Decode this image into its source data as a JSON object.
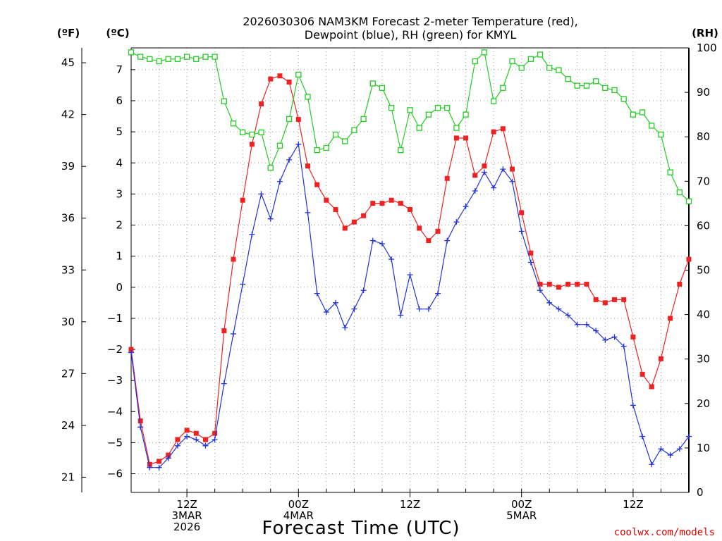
{
  "chart_data": {
    "type": "line",
    "title_line1": "2026030306 NAM3KM Forecast 2-meter Temperature (red),",
    "title_line2": "Dewpoint (blue), RH (green) for KMYL",
    "xlabel": "Forecast Time (UTC)",
    "credit": "coolwx.com/models",
    "units": {
      "left_f": "(ºF)",
      "left_c": "(ºC)",
      "right": "(RH)"
    },
    "celsius_axis": {
      "range": [
        -6.6,
        7.7
      ],
      "ticks": [
        7,
        6,
        5,
        4,
        3,
        2,
        1,
        0,
        -1,
        -2,
        -3,
        -4,
        -5,
        -6
      ],
      "labels": [
        "7",
        "6",
        "5",
        "4",
        "3",
        "2",
        "1",
        "0",
        "−1",
        "−2",
        "−3",
        "−4",
        "−5",
        "−6"
      ]
    },
    "fahrenheit_axis": {
      "ticks": [
        45,
        42,
        39,
        36,
        33,
        30,
        27,
        24,
        21
      ],
      "labels": [
        "45",
        "42",
        "39",
        "36",
        "33",
        "30",
        "27",
        "24",
        "21"
      ]
    },
    "rh_axis": {
      "range": [
        0,
        100
      ],
      "ticks": [
        100,
        90,
        80,
        70,
        60,
        50,
        40,
        30,
        20,
        10,
        0
      ],
      "labels": [
        "100",
        "90",
        "80",
        "70",
        "60",
        "50",
        "40",
        "30",
        "20",
        "10",
        "0"
      ]
    },
    "x_range_hours": [
      6,
      66
    ],
    "x_ticks": [
      {
        "hour": 12,
        "lines": [
          "12Z",
          "3MAR",
          "2026"
        ]
      },
      {
        "hour": 24,
        "lines": [
          "00Z",
          "4MAR"
        ]
      },
      {
        "hour": 36,
        "lines": [
          "12Z"
        ]
      },
      {
        "hour": 48,
        "lines": [
          "00Z",
          "5MAR"
        ]
      },
      {
        "hour": 60,
        "lines": [
          "12Z"
        ]
      }
    ],
    "series": [
      {
        "name": "Temperature",
        "color": "#ee2222",
        "marker": "filled-square",
        "axis": "celsius",
        "x": [
          6,
          7,
          8,
          9,
          10,
          11,
          12,
          13,
          14,
          15,
          16,
          17,
          18,
          19,
          20,
          21,
          22,
          23,
          24,
          25,
          26,
          27,
          28,
          29,
          30,
          31,
          32,
          33,
          34,
          35,
          36,
          37,
          38,
          39,
          40,
          41,
          42,
          43,
          44,
          45,
          46,
          47,
          48,
          49,
          50,
          51,
          52,
          53,
          54,
          55,
          56,
          57,
          58,
          59,
          60,
          61,
          62,
          63,
          64,
          65,
          66
        ],
        "values": [
          -2.0,
          -4.3,
          -5.7,
          -5.6,
          -5.4,
          -4.9,
          -4.6,
          -4.7,
          -4.9,
          -4.7,
          -1.4,
          0.9,
          2.8,
          4.6,
          5.9,
          6.7,
          6.8,
          6.6,
          5.4,
          3.9,
          3.3,
          2.8,
          2.5,
          1.9,
          2.1,
          2.3,
          2.7,
          2.7,
          2.8,
          2.7,
          2.5,
          1.9,
          1.5,
          1.8,
          3.5,
          4.8,
          4.8,
          3.6,
          3.9,
          5.0,
          5.1,
          3.8,
          2.4,
          1.1,
          0.1,
          0.1,
          0.0,
          0.1,
          0.1,
          0.1,
          -0.4,
          -0.5,
          -0.4,
          -0.4,
          -1.6,
          -2.8,
          -3.2,
          -2.3,
          -1.0,
          0.1,
          0.9
        ]
      },
      {
        "name": "Dewpoint",
        "color": "#2233dd",
        "marker": "plus",
        "axis": "celsius",
        "x": [
          6,
          7,
          8,
          9,
          10,
          11,
          12,
          13,
          14,
          15,
          16,
          17,
          18,
          19,
          20,
          21,
          22,
          23,
          24,
          25,
          26,
          27,
          28,
          29,
          30,
          31,
          32,
          33,
          34,
          35,
          36,
          37,
          38,
          39,
          40,
          41,
          42,
          43,
          44,
          45,
          46,
          47,
          48,
          49,
          50,
          51,
          52,
          53,
          54,
          55,
          56,
          57,
          58,
          59,
          60,
          61,
          62,
          63,
          64,
          65,
          66
        ],
        "values": [
          -2.1,
          -4.5,
          -5.8,
          -5.8,
          -5.5,
          -5.1,
          -4.8,
          -4.9,
          -5.1,
          -4.9,
          -3.1,
          -1.5,
          0.1,
          1.7,
          3.0,
          2.2,
          3.4,
          4.1,
          4.6,
          2.4,
          -0.2,
          -0.8,
          -0.5,
          -1.3,
          -0.7,
          -0.1,
          1.5,
          1.4,
          0.9,
          -0.9,
          0.4,
          -0.7,
          -0.7,
          -0.2,
          1.5,
          2.1,
          2.6,
          3.1,
          3.7,
          3.2,
          3.8,
          3.4,
          1.8,
          0.8,
          -0.1,
          -0.5,
          -0.7,
          -0.9,
          -1.2,
          -1.2,
          -1.4,
          -1.7,
          -1.6,
          -1.9,
          -3.8,
          -4.8,
          -5.7,
          -5.2,
          -5.4,
          -5.2,
          -4.8
        ]
      },
      {
        "name": "Relative Humidity",
        "color": "#22cc22",
        "marker": "open-square",
        "axis": "rh",
        "x": [
          6,
          7,
          8,
          9,
          10,
          11,
          12,
          13,
          14,
          15,
          16,
          17,
          18,
          19,
          20,
          21,
          22,
          23,
          24,
          25,
          26,
          27,
          28,
          29,
          30,
          31,
          32,
          33,
          34,
          35,
          36,
          37,
          38,
          39,
          40,
          41,
          42,
          43,
          44,
          45,
          46,
          47,
          48,
          49,
          50,
          51,
          52,
          53,
          54,
          55,
          56,
          57,
          58,
          59,
          60,
          61,
          62,
          63,
          64,
          65,
          66
        ],
        "values": [
          99,
          98,
          97.5,
          97,
          97.5,
          97.5,
          98,
          97.5,
          98,
          98,
          88,
          83,
          81,
          80.5,
          81,
          73,
          78,
          84,
          94,
          89,
          77,
          77.5,
          80.5,
          79,
          81.5,
          84,
          92,
          91,
          86.5,
          77,
          86,
          82,
          85,
          86.5,
          86.5,
          82,
          85,
          97,
          99,
          88,
          91,
          97,
          95.5,
          97.5,
          98.5,
          95.5,
          95,
          93,
          91.5,
          91.5,
          92.5,
          91,
          90.5,
          88.5,
          85,
          85.5,
          82.5,
          80.5,
          72,
          67.5,
          65.5
        ]
      }
    ]
  }
}
